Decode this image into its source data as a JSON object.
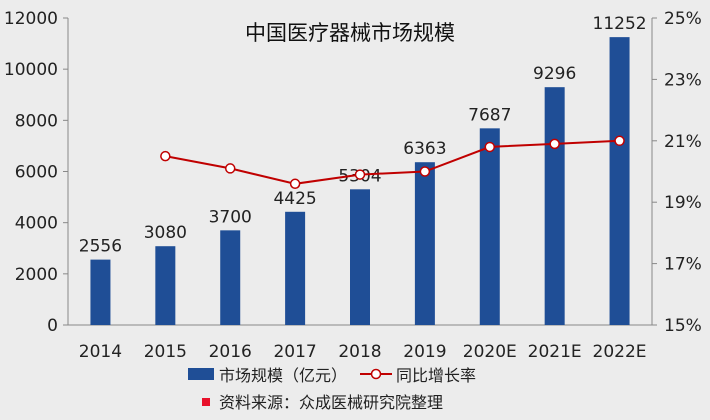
{
  "chart_data": {
    "type": "bar",
    "title": "中国医疗器械市场规模",
    "categories": [
      "2014",
      "2015",
      "2016",
      "2017",
      "2018",
      "2019",
      "2020E",
      "2021E",
      "2022E"
    ],
    "series": [
      {
        "name": "市场规模（亿元）",
        "type": "bar",
        "axis": "left",
        "color": "#1f4e96",
        "values": [
          2556,
          3080,
          3700,
          4425,
          5304,
          6363,
          7687,
          9296,
          11252
        ]
      },
      {
        "name": "同比增长率",
        "type": "line",
        "axis": "right",
        "color": "#c00000",
        "values": [
          null,
          20.5,
          20.1,
          19.6,
          19.9,
          20.0,
          20.8,
          20.9,
          21.0
        ]
      }
    ],
    "ylim_left": [
      0,
      12000
    ],
    "yticks_left": [
      "0",
      "2000",
      "4000",
      "6000",
      "8000",
      "10000",
      "12000"
    ],
    "ylim_right": [
      15,
      25
    ],
    "yticks_right": [
      "15%",
      "17%",
      "19%",
      "21%",
      "23%",
      "25%"
    ],
    "grid": false,
    "legend_position": "bottom",
    "source": "资料来源：众成医械研究院整理",
    "source_marker_color": "#e8102a"
  }
}
